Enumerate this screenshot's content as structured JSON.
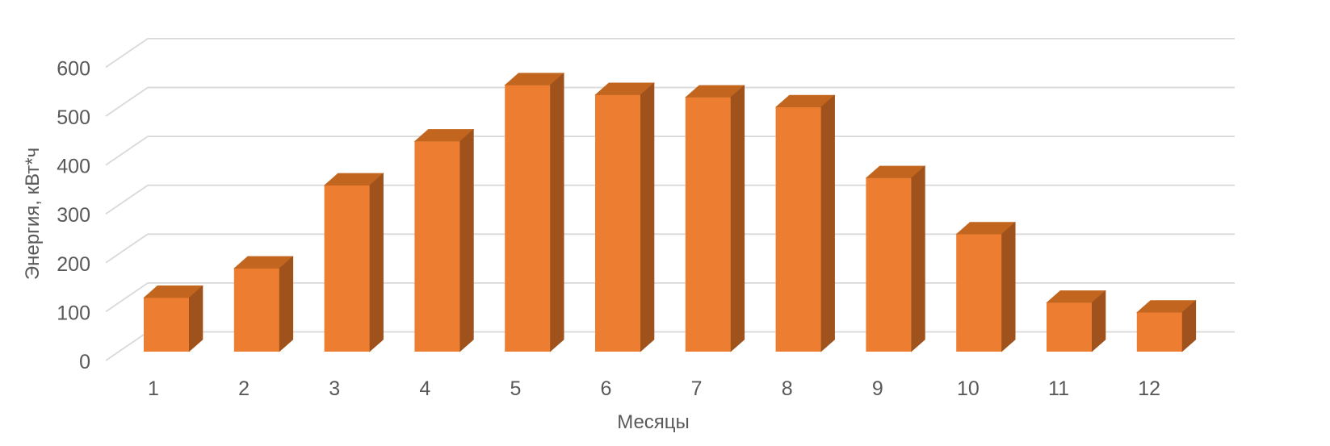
{
  "chart_data": {
    "type": "bar",
    "variant": "3d-column",
    "title": "",
    "categories": [
      "1",
      "2",
      "3",
      "4",
      "5",
      "6",
      "7",
      "8",
      "9",
      "10",
      "11",
      "12"
    ],
    "values": [
      110,
      170,
      340,
      430,
      545,
      525,
      520,
      500,
      355,
      240,
      100,
      80
    ],
    "xlabel": "Месяцы",
    "ylabel": "Энергия, кВт*ч",
    "ylim": [
      0,
      600
    ],
    "ytick_step": 100,
    "yticks": [
      "0",
      "100",
      "200",
      "300",
      "400",
      "500",
      "600"
    ],
    "grid": true,
    "legend": false,
    "colors": {
      "bar_front": "#ED7D31",
      "bar_top": "#C2661F",
      "bar_side": "#A0521D",
      "gridline": "#D9D9D9",
      "axis_text": "#595959",
      "background": "#FFFFFF"
    }
  }
}
